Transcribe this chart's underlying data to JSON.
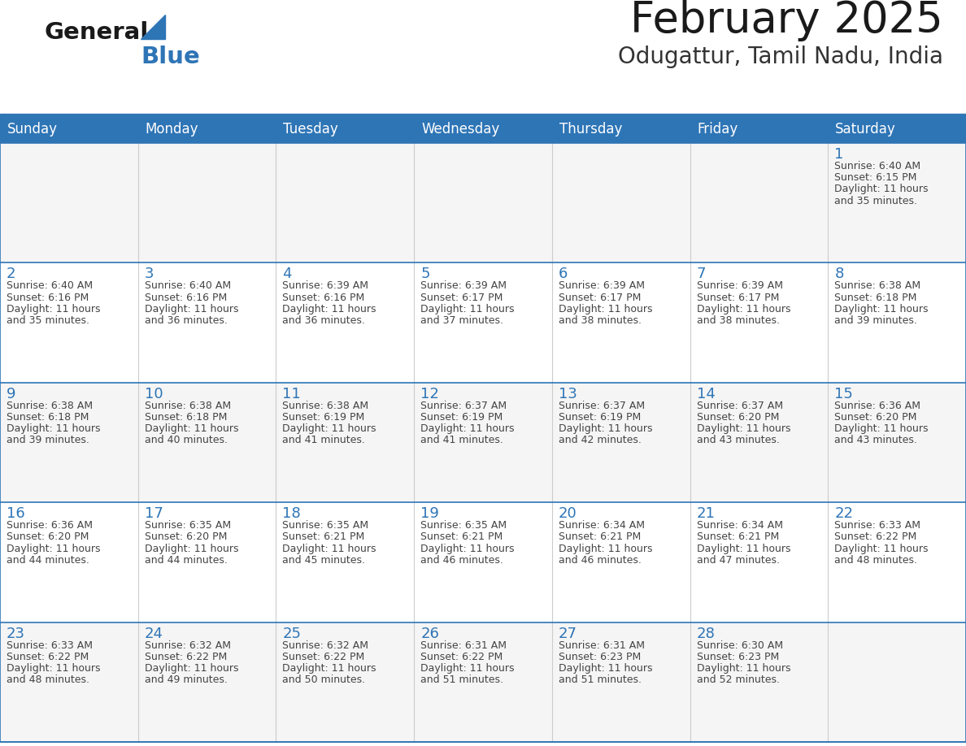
{
  "title": "February 2025",
  "subtitle": "Odugattur, Tamil Nadu, India",
  "days_of_week": [
    "Sunday",
    "Monday",
    "Tuesday",
    "Wednesday",
    "Thursday",
    "Friday",
    "Saturday"
  ],
  "header_bg": "#2E75B6",
  "header_text": "#FFFFFF",
  "cell_bg_even": "#F5F5F5",
  "cell_bg_odd": "#FFFFFF",
  "cell_border_color": "#2E75B6",
  "vert_border_color": "#CCCCCC",
  "day_number_color": "#2E75B6",
  "cell_text_color": "#444444",
  "title_color": "#1A1A1A",
  "subtitle_color": "#333333",
  "logo_general_color": "#1A1A1A",
  "logo_blue_color": "#2E75B6",
  "calendar_data": [
    [
      null,
      null,
      null,
      null,
      null,
      null,
      {
        "day": 1,
        "sunrise": "6:40 AM",
        "sunset": "6:15 PM",
        "daylight_line1": "Daylight: 11 hours",
        "daylight_line2": "and 35 minutes."
      }
    ],
    [
      {
        "day": 2,
        "sunrise": "6:40 AM",
        "sunset": "6:16 PM",
        "daylight_line1": "Daylight: 11 hours",
        "daylight_line2": "and 35 minutes."
      },
      {
        "day": 3,
        "sunrise": "6:40 AM",
        "sunset": "6:16 PM",
        "daylight_line1": "Daylight: 11 hours",
        "daylight_line2": "and 36 minutes."
      },
      {
        "day": 4,
        "sunrise": "6:39 AM",
        "sunset": "6:16 PM",
        "daylight_line1": "Daylight: 11 hours",
        "daylight_line2": "and 36 minutes."
      },
      {
        "day": 5,
        "sunrise": "6:39 AM",
        "sunset": "6:17 PM",
        "daylight_line1": "Daylight: 11 hours",
        "daylight_line2": "and 37 minutes."
      },
      {
        "day": 6,
        "sunrise": "6:39 AM",
        "sunset": "6:17 PM",
        "daylight_line1": "Daylight: 11 hours",
        "daylight_line2": "and 38 minutes."
      },
      {
        "day": 7,
        "sunrise": "6:39 AM",
        "sunset": "6:17 PM",
        "daylight_line1": "Daylight: 11 hours",
        "daylight_line2": "and 38 minutes."
      },
      {
        "day": 8,
        "sunrise": "6:38 AM",
        "sunset": "6:18 PM",
        "daylight_line1": "Daylight: 11 hours",
        "daylight_line2": "and 39 minutes."
      }
    ],
    [
      {
        "day": 9,
        "sunrise": "6:38 AM",
        "sunset": "6:18 PM",
        "daylight_line1": "Daylight: 11 hours",
        "daylight_line2": "and 39 minutes."
      },
      {
        "day": 10,
        "sunrise": "6:38 AM",
        "sunset": "6:18 PM",
        "daylight_line1": "Daylight: 11 hours",
        "daylight_line2": "and 40 minutes."
      },
      {
        "day": 11,
        "sunrise": "6:38 AM",
        "sunset": "6:19 PM",
        "daylight_line1": "Daylight: 11 hours",
        "daylight_line2": "and 41 minutes."
      },
      {
        "day": 12,
        "sunrise": "6:37 AM",
        "sunset": "6:19 PM",
        "daylight_line1": "Daylight: 11 hours",
        "daylight_line2": "and 41 minutes."
      },
      {
        "day": 13,
        "sunrise": "6:37 AM",
        "sunset": "6:19 PM",
        "daylight_line1": "Daylight: 11 hours",
        "daylight_line2": "and 42 minutes."
      },
      {
        "day": 14,
        "sunrise": "6:37 AM",
        "sunset": "6:20 PM",
        "daylight_line1": "Daylight: 11 hours",
        "daylight_line2": "and 43 minutes."
      },
      {
        "day": 15,
        "sunrise": "6:36 AM",
        "sunset": "6:20 PM",
        "daylight_line1": "Daylight: 11 hours",
        "daylight_line2": "and 43 minutes."
      }
    ],
    [
      {
        "day": 16,
        "sunrise": "6:36 AM",
        "sunset": "6:20 PM",
        "daylight_line1": "Daylight: 11 hours",
        "daylight_line2": "and 44 minutes."
      },
      {
        "day": 17,
        "sunrise": "6:35 AM",
        "sunset": "6:20 PM",
        "daylight_line1": "Daylight: 11 hours",
        "daylight_line2": "and 44 minutes."
      },
      {
        "day": 18,
        "sunrise": "6:35 AM",
        "sunset": "6:21 PM",
        "daylight_line1": "Daylight: 11 hours",
        "daylight_line2": "and 45 minutes."
      },
      {
        "day": 19,
        "sunrise": "6:35 AM",
        "sunset": "6:21 PM",
        "daylight_line1": "Daylight: 11 hours",
        "daylight_line2": "and 46 minutes."
      },
      {
        "day": 20,
        "sunrise": "6:34 AM",
        "sunset": "6:21 PM",
        "daylight_line1": "Daylight: 11 hours",
        "daylight_line2": "and 46 minutes."
      },
      {
        "day": 21,
        "sunrise": "6:34 AM",
        "sunset": "6:21 PM",
        "daylight_line1": "Daylight: 11 hours",
        "daylight_line2": "and 47 minutes."
      },
      {
        "day": 22,
        "sunrise": "6:33 AM",
        "sunset": "6:22 PM",
        "daylight_line1": "Daylight: 11 hours",
        "daylight_line2": "and 48 minutes."
      }
    ],
    [
      {
        "day": 23,
        "sunrise": "6:33 AM",
        "sunset": "6:22 PM",
        "daylight_line1": "Daylight: 11 hours",
        "daylight_line2": "and 48 minutes."
      },
      {
        "day": 24,
        "sunrise": "6:32 AM",
        "sunset": "6:22 PM",
        "daylight_line1": "Daylight: 11 hours",
        "daylight_line2": "and 49 minutes."
      },
      {
        "day": 25,
        "sunrise": "6:32 AM",
        "sunset": "6:22 PM",
        "daylight_line1": "Daylight: 11 hours",
        "daylight_line2": "and 50 minutes."
      },
      {
        "day": 26,
        "sunrise": "6:31 AM",
        "sunset": "6:22 PM",
        "daylight_line1": "Daylight: 11 hours",
        "daylight_line2": "and 51 minutes."
      },
      {
        "day": 27,
        "sunrise": "6:31 AM",
        "sunset": "6:23 PM",
        "daylight_line1": "Daylight: 11 hours",
        "daylight_line2": "and 51 minutes."
      },
      {
        "day": 28,
        "sunrise": "6:30 AM",
        "sunset": "6:23 PM",
        "daylight_line1": "Daylight: 11 hours",
        "daylight_line2": "and 52 minutes."
      },
      null
    ]
  ]
}
